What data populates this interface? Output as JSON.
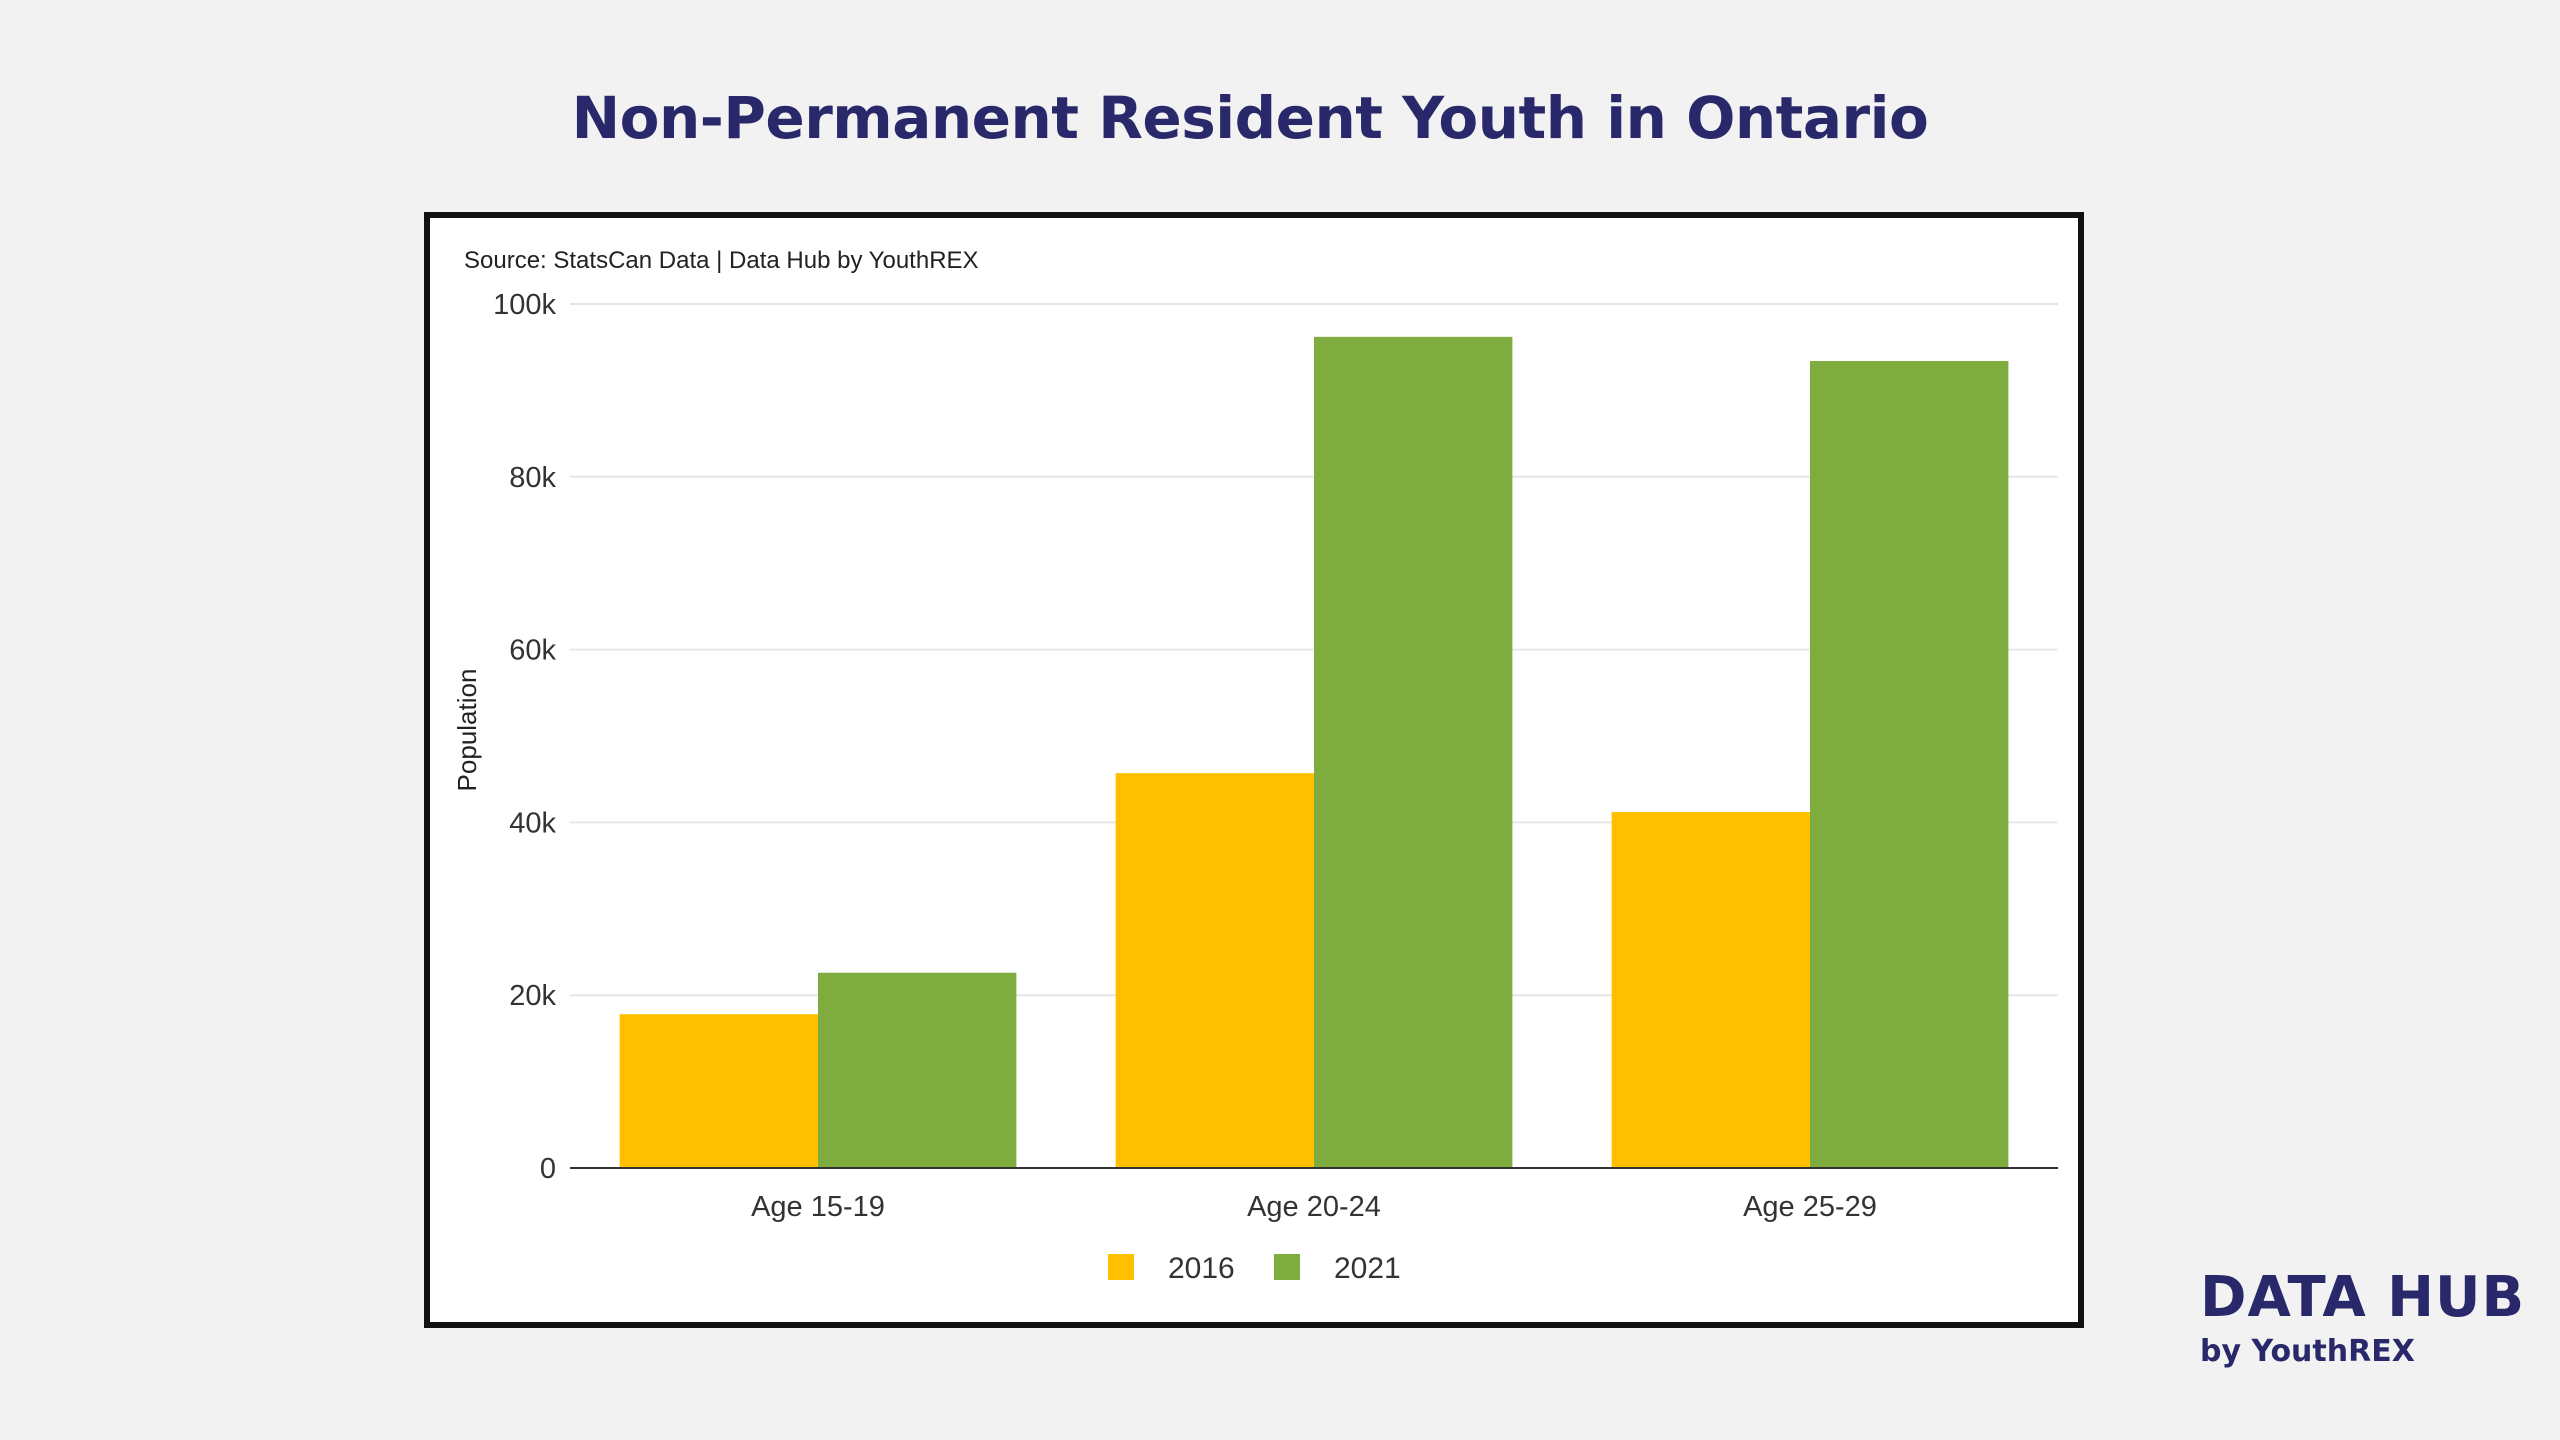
{
  "title": "Non-Permanent Resident Youth in Ontario",
  "brand": {
    "name": "DATA HUB",
    "tagline": "by YouthREX"
  },
  "colors": {
    "background": "#f2f2f2",
    "title": "#28286a",
    "series_2016": "#ffc000",
    "series_2021": "#7fac3f",
    "gridline": "#e6e6e6"
  },
  "chart_data": {
    "type": "bar",
    "source": "Source: StatsCan Data | Data Hub by YouthREX",
    "ylabel": "Population",
    "xlabel": "",
    "categories": [
      "Age 15-19",
      "Age 20-24",
      "Age 25-29"
    ],
    "series": [
      {
        "name": "2016",
        "color": "#ffc000",
        "values": [
          17800,
          45700,
          41200
        ]
      },
      {
        "name": "2021",
        "color": "#7fac3f",
        "values": [
          22600,
          96200,
          93400
        ]
      }
    ],
    "ylim": [
      0,
      100000
    ],
    "yticks": [
      0,
      20000,
      40000,
      60000,
      80000,
      100000
    ],
    "ytick_labels": [
      "0",
      "20k",
      "40k",
      "60k",
      "80k",
      "100k"
    ],
    "grid": true,
    "legend_position": "bottom-center"
  }
}
